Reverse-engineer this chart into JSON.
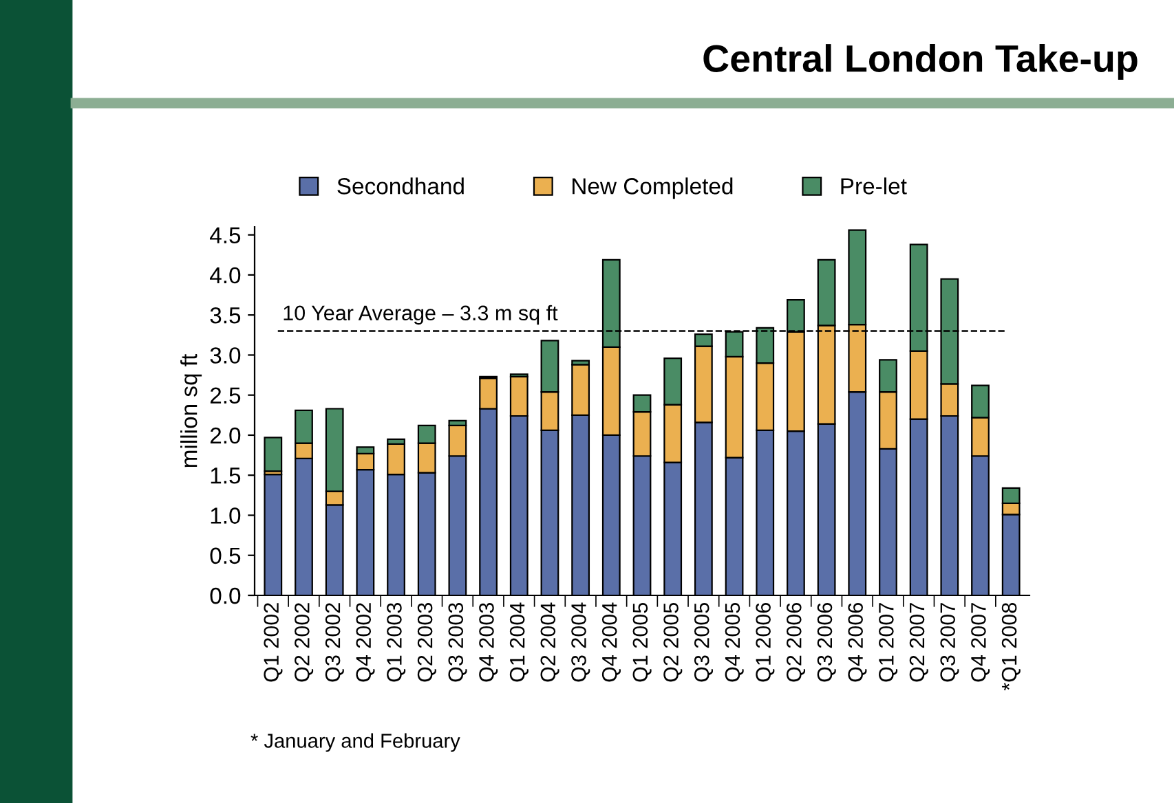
{
  "chart_data": {
    "type": "bar",
    "title": "Central London Take-up",
    "ylabel": "million sq ft",
    "stacked": true,
    "legend": "top",
    "grid": false,
    "categories": [
      "Q1 2002",
      "Q2 2002",
      "Q3 2002",
      "Q4 2002",
      "Q1 2003",
      "Q2 2003",
      "Q3 2003",
      "Q4 2003",
      "Q1 2004",
      "Q2 2004",
      "Q3 2004",
      "Q4 2004",
      "Q1 2005",
      "Q2 2005",
      "Q3 2005",
      "Q4 2005",
      "Q1 2006",
      "Q2 2006",
      "Q3 2006",
      "Q4 2006",
      "Q1 2007",
      "Q2 2007",
      "Q3 2007",
      "Q4 2007",
      "*Q1 2008"
    ],
    "series": [
      {
        "name": "Secondhand",
        "color": "#5a6fa8",
        "values": [
          1.51,
          1.71,
          1.13,
          1.57,
          1.51,
          1.53,
          1.74,
          2.33,
          2.24,
          2.06,
          2.25,
          2.0,
          1.74,
          1.66,
          2.16,
          1.72,
          2.06,
          2.05,
          2.14,
          2.54,
          1.83,
          2.2,
          2.24,
          1.74,
          1.01
        ]
      },
      {
        "name": "New Completed",
        "color": "#ebb050",
        "values": [
          0.04,
          0.19,
          0.17,
          0.2,
          0.38,
          0.37,
          0.38,
          0.38,
          0.49,
          0.48,
          0.63,
          1.1,
          0.55,
          0.72,
          0.95,
          1.26,
          0.84,
          1.24,
          1.23,
          0.84,
          0.71,
          0.85,
          0.4,
          0.48,
          0.14
        ]
      },
      {
        "name": "Pre-let",
        "color": "#4a8c65",
        "values": [
          0.42,
          0.41,
          1.03,
          0.08,
          0.06,
          0.22,
          0.06,
          0.02,
          0.03,
          0.64,
          0.05,
          1.09,
          0.21,
          0.58,
          0.15,
          0.31,
          0.44,
          0.4,
          0.82,
          1.18,
          0.4,
          1.33,
          1.31,
          0.4,
          0.19
        ]
      }
    ],
    "ylim": [
      0,
      4.6
    ],
    "yticks": [
      {
        "value": 0,
        "label": "0.0"
      },
      {
        "value": 0.5,
        "label": "0.5"
      },
      {
        "value": 1,
        "label": "1.0"
      },
      {
        "value": 1.5,
        "label": "1.5"
      },
      {
        "value": 2,
        "label": "2.0"
      },
      {
        "value": 2.5,
        "label": "2.5"
      },
      {
        "value": 3,
        "label": "3.0"
      },
      {
        "value": 3.5,
        "label": "3.5"
      },
      {
        "value": 4,
        "label": "4.0"
      },
      {
        "value": 4.5,
        "label": "4.5"
      }
    ],
    "ref_lines": [
      {
        "axis": "y",
        "value": 3.3,
        "label": "10 Year Average – 3.3 m sq ft",
        "color": "#000000",
        "line_style": "dashed"
      }
    ],
    "annotations": [
      "* January and February"
    ]
  }
}
